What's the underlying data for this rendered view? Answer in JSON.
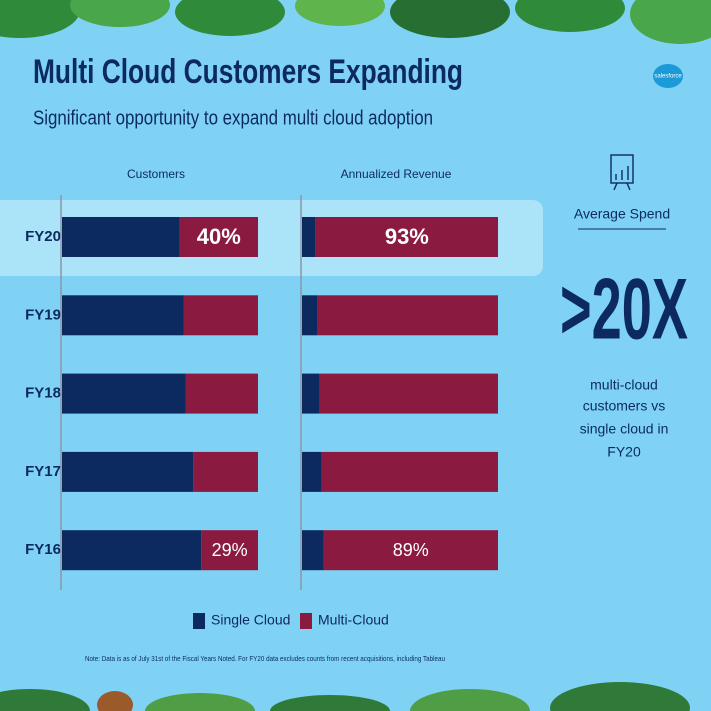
{
  "title": "Multi Cloud Customers Expanding",
  "subtitle": "Significant opportunity to expand multi cloud adoption",
  "logo": "salesforce",
  "note": "Note: Data is as of July 31st of the Fiscal Years Noted. For FY20 data excludes counts from recent acquisitions, including Tableau",
  "callout": {
    "heading": "Average Spend",
    "value": ">20X",
    "lines": [
      "multi-cloud",
      "customers vs",
      "single cloud in",
      "FY20"
    ]
  },
  "chart_data": {
    "type": "bar",
    "orientation": "horizontal",
    "stacked": true,
    "categories": [
      "FY20",
      "FY19",
      "FY18",
      "FY17",
      "FY16"
    ],
    "highlight": "FY20",
    "xlim": [
      0,
      100
    ],
    "panels": [
      {
        "title": "Customers",
        "series": [
          {
            "name": "Single Cloud",
            "color": "#0c2a5f",
            "values": [
              60,
              62,
              63,
              67,
              71
            ]
          },
          {
            "name": "Multi-Cloud",
            "color": "#8a1a40",
            "values": [
              40,
              38,
              37,
              33,
              29
            ],
            "value_labels": [
              "40%",
              null,
              null,
              null,
              "29%"
            ]
          }
        ]
      },
      {
        "title": "Annualized Revenue",
        "series": [
          {
            "name": "Single Cloud",
            "color": "#0c2a5f",
            "values": [
              7,
              8,
              9,
              10,
              11
            ]
          },
          {
            "name": "Multi-Cloud",
            "color": "#8a1a40",
            "values": [
              93,
              92,
              91,
              90,
              89
            ],
            "value_labels": [
              "93%",
              null,
              null,
              null,
              "89%"
            ]
          }
        ]
      }
    ]
  }
}
